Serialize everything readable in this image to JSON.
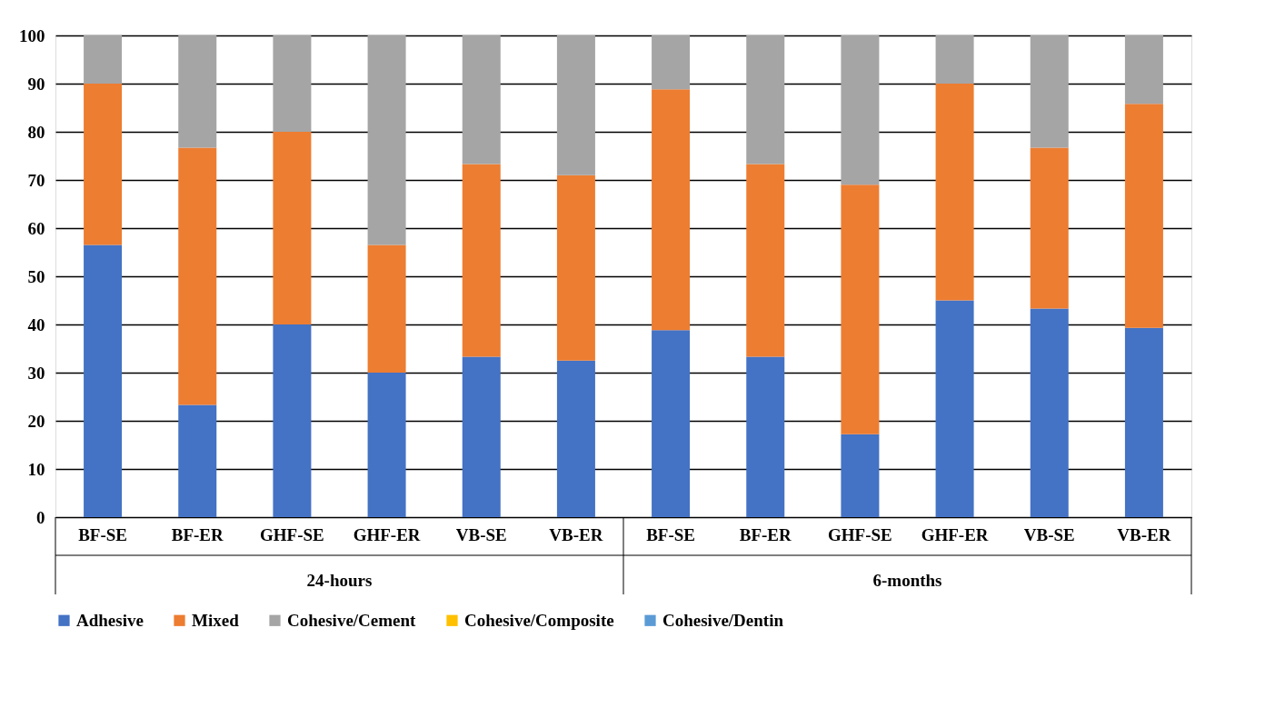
{
  "chart_data": {
    "type": "bar",
    "stacked": true,
    "categories": [
      "BF-SE",
      "BF-ER",
      "GHF-SE",
      "GHF-ER",
      "VB-SE",
      "VB-ER",
      "BF-SE",
      "BF-ER",
      "GHF-SE",
      "GHF-ER",
      "VB-SE",
      "VB-ER"
    ],
    "series": [
      {
        "name": "Adhesive",
        "color": "#4472c4",
        "values": [
          56.5,
          23.3,
          40,
          30,
          33.3,
          32.5,
          38.8,
          33.3,
          17.2,
          45,
          43.3,
          39.3
        ]
      },
      {
        "name": "Mixed",
        "color": "#ed7d31",
        "values": [
          33.5,
          53.4,
          40,
          26.5,
          40,
          38.5,
          50,
          40,
          51.8,
          45,
          33.4,
          46.5
        ]
      },
      {
        "name": "Cohesive/Cement",
        "color": "#a5a5a5",
        "values": [
          10,
          23.3,
          20,
          43.5,
          26.7,
          29,
          11.2,
          26.7,
          31,
          10,
          23.3,
          14.2
        ]
      },
      {
        "name": "Cohesive/Composite",
        "color": "#ffc000",
        "values": [
          0,
          0,
          0,
          0,
          0,
          0,
          0,
          0,
          0,
          0,
          0,
          0
        ]
      },
      {
        "name": "Cohesive/Dentin",
        "color": "#5b9bd5",
        "values": [
          0,
          0,
          0,
          0,
          0,
          0,
          0,
          0,
          0,
          0,
          0,
          0
        ]
      }
    ],
    "ylim": [
      0,
      100
    ],
    "yticks": [
      0,
      10,
      20,
      30,
      40,
      50,
      60,
      70,
      80,
      90,
      100
    ],
    "grid": "y",
    "legend": "bottom",
    "annotations": [
      "24-hours",
      "6-months"
    ]
  }
}
